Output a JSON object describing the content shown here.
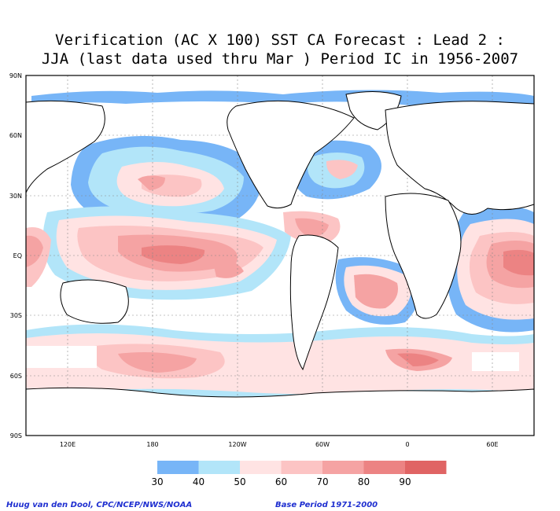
{
  "title": {
    "line1": "Verification (AC X 100) SST CA Forecast : Lead 2 :",
    "line2": "JJA (last data used thru Mar ) Period IC in 1956-2007"
  },
  "map": {
    "lat_labels": [
      "90N",
      "60N",
      "30N",
      "EQ",
      "30S",
      "60S",
      "90S"
    ],
    "lon_labels": [
      "120E",
      "180",
      "120W",
      "60W",
      "0",
      "60E"
    ]
  },
  "colorbar": {
    "labels": [
      "30",
      "40",
      "50",
      "60",
      "70",
      "80",
      "90"
    ],
    "colors": [
      "#77b5f7",
      "#b2e5f9",
      "#ffe3e3",
      "#fcc4c4",
      "#f5a3a3",
      "#ec8383",
      "#e06464"
    ]
  },
  "footer": {
    "credit": "Huug van den Dool, CPC/NCEP/NWS/NOAA",
    "base_period": "Base Period 1971-2000"
  }
}
